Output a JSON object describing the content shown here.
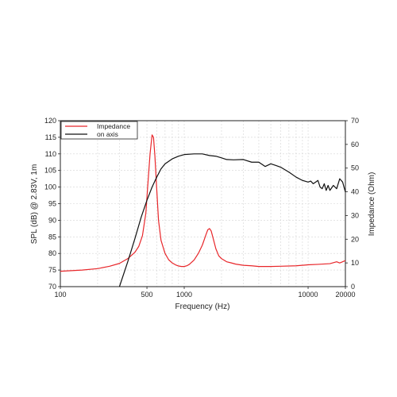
{
  "chart_data": {
    "type": "line",
    "xlabel": "Frequency (Hz)",
    "ylabel_left": "SPL (dB) @ 2.83V, 1m",
    "ylabel_right": "Impedance (Ohm)",
    "x_scale": "log",
    "xlim": [
      100,
      20000
    ],
    "ylim_left": [
      70,
      120
    ],
    "ylim_right": [
      0,
      70
    ],
    "grid": true,
    "legend_position": "top-left",
    "x_ticks": [
      {
        "value": 100,
        "label": "100"
      },
      {
        "value": 500,
        "label": "500"
      },
      {
        "value": 1000,
        "label": "1000"
      },
      {
        "value": 10000,
        "label": "10000"
      },
      {
        "value": 20000,
        "label": "20000"
      }
    ],
    "y_ticks_left": [
      "70",
      "75",
      "80",
      "85",
      "90",
      "95",
      "100",
      "105",
      "110",
      "115",
      "120"
    ],
    "y_ticks_right": [
      "0",
      "10",
      "20",
      "30",
      "40",
      "50",
      "60",
      "70"
    ],
    "series": [
      {
        "name": "Impedance",
        "axis": "right",
        "color": "#e8262a",
        "x": [
          100,
          150,
          200,
          250,
          300,
          350,
          400,
          430,
          460,
          490,
          510,
          530,
          550,
          565,
          580,
          600,
          620,
          650,
          700,
          750,
          800,
          850,
          900,
          950,
          1000,
          1050,
          1100,
          1200,
          1300,
          1400,
          1500,
          1550,
          1600,
          1650,
          1700,
          1800,
          1900,
          2000,
          2200,
          2400,
          2600,
          3000,
          3500,
          4000,
          5000,
          6000,
          8000,
          10000,
          12000,
          15000,
          17000,
          18000,
          20000
        ],
        "y": [
          6.5,
          7.0,
          7.6,
          8.6,
          9.8,
          11.8,
          14.5,
          17.0,
          21.5,
          31.0,
          44.0,
          56.0,
          64.0,
          63.0,
          55.0,
          41.0,
          28.0,
          19.5,
          14.0,
          11.3,
          10.0,
          9.2,
          8.7,
          8.5,
          8.5,
          8.8,
          9.4,
          11.2,
          14.0,
          17.5,
          22.0,
          24.0,
          24.5,
          23.5,
          21.0,
          16.0,
          13.0,
          11.8,
          10.5,
          10.0,
          9.5,
          9.0,
          8.8,
          8.5,
          8.5,
          8.6,
          8.8,
          9.2,
          9.4,
          9.7,
          10.5,
          10.0,
          11.0
        ]
      },
      {
        "name": "on axis",
        "axis": "left",
        "color": "#111111",
        "x": [
          300,
          350,
          400,
          450,
          500,
          550,
          600,
          650,
          700,
          800,
          900,
          1000,
          1200,
          1400,
          1600,
          1800,
          2000,
          2200,
          2500,
          3000,
          3500,
          4000,
          4500,
          5000,
          5500,
          6000,
          7000,
          8000,
          9000,
          10000,
          10500,
          11000,
          11500,
          12000,
          12500,
          13000,
          13500,
          14000,
          14500,
          15000,
          16000,
          17000,
          18000,
          19000,
          20000
        ],
        "y": [
          70.0,
          77.5,
          84.5,
          91.0,
          96.0,
          100.0,
          103.0,
          105.5,
          107.0,
          108.5,
          109.3,
          109.8,
          110.0,
          110.0,
          109.5,
          109.3,
          108.8,
          108.3,
          108.2,
          108.3,
          107.5,
          107.5,
          106.2,
          107.0,
          106.5,
          106.0,
          104.5,
          103.0,
          102.0,
          101.5,
          101.8,
          101.0,
          101.5,
          102.0,
          100.0,
          99.5,
          101.0,
          99.0,
          100.5,
          99.0,
          100.5,
          99.5,
          102.5,
          101.5,
          98.5
        ]
      }
    ]
  }
}
